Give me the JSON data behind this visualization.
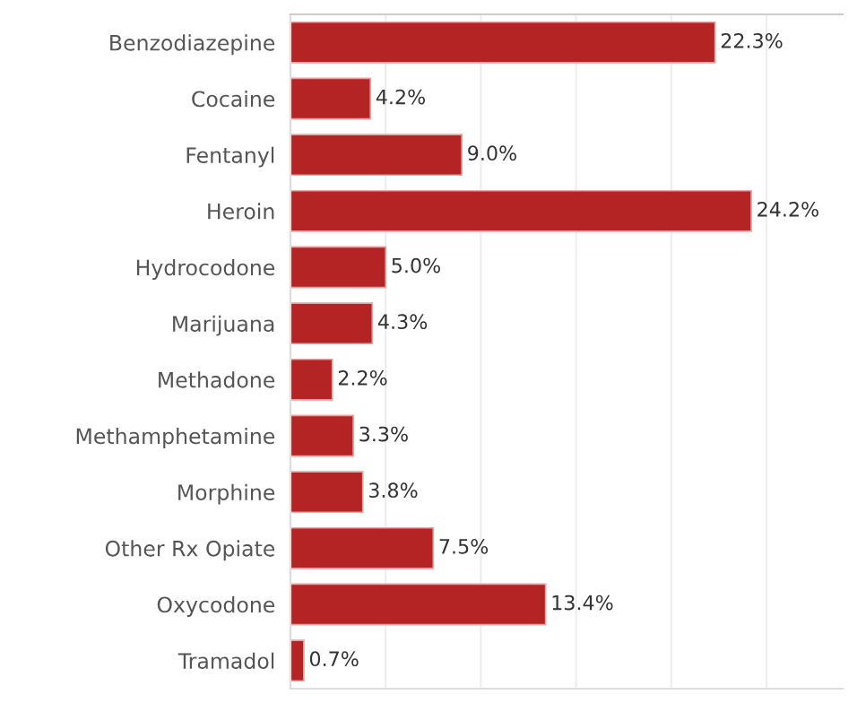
{
  "chart_data": {
    "type": "bar",
    "orientation": "horizontal",
    "categories": [
      "Benzodiazepine",
      "Cocaine",
      "Fentanyl",
      "Heroin",
      "Hydrocodone",
      "Marijuana",
      "Methadone",
      "Methamphetamine",
      "Morphine",
      "Other Rx Opiate",
      "Oxycodone",
      "Tramadol"
    ],
    "values": [
      22.3,
      4.2,
      9.0,
      24.2,
      5.0,
      4.3,
      2.2,
      3.3,
      3.8,
      7.5,
      13.4,
      0.7
    ],
    "value_labels": [
      "22.3%",
      "4.2%",
      "9.0%",
      "24.2%",
      "5.0%",
      "4.3%",
      "2.2%",
      "3.3%",
      "3.8%",
      "7.5%",
      "13.4%",
      "0.7%"
    ],
    "color": "#b52424",
    "xlim": [
      0,
      29
    ],
    "xticks": [
      {
        "value": 0,
        "label": null
      },
      {
        "value": 5,
        "label": null
      },
      {
        "value": 10,
        "label": null
      },
      {
        "value": 15,
        "label": null
      },
      {
        "value": 20,
        "label": null
      },
      {
        "value": 25,
        "label": null
      }
    ],
    "tick_labels": "y",
    "grid": "x",
    "legend": false
  }
}
